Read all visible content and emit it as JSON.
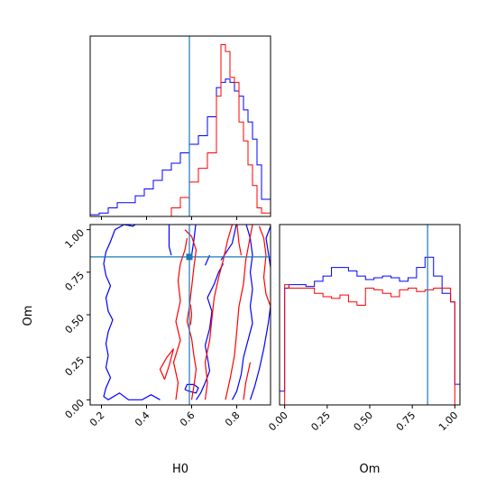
{
  "chart_data": {
    "type": "corner",
    "parameters": [
      "H0",
      "Om"
    ],
    "truth": {
      "H0": 0.59,
      "Om": 0.84
    },
    "colors": {
      "series_a": "#0000ff",
      "series_b": "#ff0000",
      "truth": "#1f77b4"
    },
    "H0_axis": {
      "xlim": [
        0.15,
        0.95
      ],
      "ticks": [
        "0.2",
        "0.4",
        "0.6",
        "0.8"
      ],
      "tick_values": [
        0.2,
        0.4,
        0.6,
        0.8
      ]
    },
    "Om_axis": {
      "lim": [
        -0.03,
        1.03
      ],
      "ticks": [
        "0.00",
        "0.25",
        "0.50",
        "0.75",
        "1.00"
      ],
      "tick_values": [
        0.0,
        0.25,
        0.5,
        0.75,
        1.0
      ]
    },
    "hist_H0": {
      "edges": [
        0.15,
        0.19,
        0.23,
        0.27,
        0.31,
        0.35,
        0.39,
        0.43,
        0.47,
        0.51,
        0.55,
        0.59,
        0.63,
        0.67,
        0.71,
        0.73,
        0.75,
        0.77,
        0.79,
        0.81,
        0.83,
        0.85,
        0.87,
        0.89,
        0.91,
        0.95
      ],
      "series": [
        {
          "values": [
            0.01,
            0.02,
            0.05,
            0.08,
            0.08,
            0.12,
            0.16,
            0.21,
            0.27,
            0.31,
            0.37,
            0.42,
            0.47,
            0.58,
            0.75,
            0.78,
            0.8,
            0.78,
            0.73,
            0.7,
            0.62,
            0.55,
            0.45,
            0.3,
            0.1
          ]
        },
        {
          "values": [
            0,
            0,
            0,
            0,
            0,
            0,
            0,
            0,
            0,
            0.05,
            0.11,
            0.2,
            0.28,
            0.37,
            0.7,
            1.0,
            0.96,
            0.81,
            0.78,
            0.55,
            0.44,
            0.3,
            0.18,
            0.05,
            0.02
          ]
        }
      ]
    },
    "hist_Om": {
      "edges": [
        -0.03,
        0.0,
        0.025,
        0.075,
        0.125,
        0.175,
        0.225,
        0.275,
        0.325,
        0.375,
        0.425,
        0.475,
        0.525,
        0.575,
        0.625,
        0.675,
        0.725,
        0.775,
        0.825,
        0.875,
        0.925,
        0.975,
        1.0,
        1.03
      ],
      "series": [
        {
          "values": [
            0.08,
            0.68,
            0.7,
            0.7,
            0.69,
            0.72,
            0.75,
            0.8,
            0.8,
            0.78,
            0.75,
            0.73,
            0.74,
            0.75,
            0.74,
            0.72,
            0.74,
            0.8,
            0.86,
            0.75,
            0.65,
            0.6,
            0.12
          ]
        },
        {
          "values": [
            0.0,
            0.7,
            0.68,
            0.68,
            0.68,
            0.65,
            0.63,
            0.62,
            0.64,
            0.6,
            0.58,
            0.68,
            0.67,
            0.65,
            0.63,
            0.67,
            0.68,
            0.66,
            0.67,
            0.68,
            0.68,
            0.6,
            0.0
          ]
        }
      ]
    },
    "contours": [
      {
        "series": 0,
        "points": [
          [
            0.37,
            1.05
          ],
          [
            0.34,
            1.02
          ],
          [
            0.3,
            1.03
          ],
          [
            0.26,
            1.0
          ],
          [
            0.24,
            0.93
          ],
          [
            0.22,
            0.87
          ],
          [
            0.21,
            0.8
          ],
          [
            0.22,
            0.73
          ],
          [
            0.24,
            0.67
          ],
          [
            0.22,
            0.6
          ],
          [
            0.23,
            0.52
          ],
          [
            0.25,
            0.47
          ],
          [
            0.23,
            0.4
          ],
          [
            0.22,
            0.33
          ],
          [
            0.23,
            0.26
          ],
          [
            0.22,
            0.19
          ],
          [
            0.24,
            0.13
          ],
          [
            0.22,
            0.07
          ],
          [
            0.21,
            0.02
          ],
          [
            0.23,
            0.0
          ],
          [
            0.28,
            0.04
          ],
          [
            0.32,
            0.0
          ],
          [
            0.38,
            0.0
          ],
          [
            0.42,
            0.03
          ],
          [
            0.46,
            0.0
          ]
        ]
      },
      {
        "series": 0,
        "points": [
          [
            0.62,
            1.05
          ],
          [
            0.61,
            0.94
          ],
          [
            0.6,
            0.85
          ]
        ]
      },
      {
        "series": 0,
        "points": [
          [
            0.5,
            1.05
          ],
          [
            0.5,
            0.9
          ],
          [
            0.51,
            0.85
          ]
        ]
      },
      {
        "series": 0,
        "points": [
          [
            0.68,
            0.85
          ],
          [
            0.67,
            0.82
          ],
          [
            0.66,
            0.79
          ]
        ]
      },
      {
        "series": 0,
        "points": [
          [
            0.57,
            0.06
          ],
          [
            0.59,
            0.05
          ],
          [
            0.62,
            0.04
          ],
          [
            0.63,
            0.07
          ],
          [
            0.61,
            0.09
          ],
          [
            0.58,
            0.09
          ],
          [
            0.57,
            0.06
          ]
        ]
      },
      {
        "series": 0,
        "points": [
          [
            0.62,
            0.0
          ],
          [
            0.64,
            0.04
          ],
          [
            0.66,
            0.1
          ],
          [
            0.68,
            0.17
          ],
          [
            0.67,
            0.25
          ],
          [
            0.66,
            0.32
          ],
          [
            0.68,
            0.42
          ],
          [
            0.69,
            0.52
          ],
          [
            0.67,
            0.6
          ],
          [
            0.7,
            0.68
          ],
          [
            0.72,
            0.75
          ],
          [
            0.74,
            0.8
          ]
        ]
      },
      {
        "series": 0,
        "points": [
          [
            0.73,
            0.82
          ],
          [
            0.78,
            0.92
          ],
          [
            0.8,
            1.04
          ],
          [
            0.84,
            1.04
          ],
          [
            0.86,
            0.95
          ],
          [
            0.87,
            0.85
          ],
          [
            0.86,
            0.75
          ],
          [
            0.87,
            0.65
          ],
          [
            0.86,
            0.55
          ],
          [
            0.87,
            0.45
          ],
          [
            0.85,
            0.35
          ],
          [
            0.83,
            0.25
          ],
          [
            0.82,
            0.15
          ],
          [
            0.8,
            0.05
          ],
          [
            0.78,
            0.0
          ]
        ]
      },
      {
        "series": 0,
        "points": [
          [
            0.86,
            0.0
          ],
          [
            0.88,
            0.08
          ],
          [
            0.9,
            0.18
          ],
          [
            0.92,
            0.3
          ],
          [
            0.94,
            0.45
          ],
          [
            0.95,
            0.55
          ]
        ]
      },
      {
        "series": 0,
        "points": [
          [
            0.95,
            0.78
          ],
          [
            0.93,
            0.95
          ],
          [
            0.95,
            1.02
          ]
        ]
      },
      {
        "series": 1,
        "points": [
          [
            0.53,
            0.0
          ],
          [
            0.54,
            0.1
          ],
          [
            0.52,
            0.22
          ],
          [
            0.55,
            0.35
          ],
          [
            0.53,
            0.46
          ],
          [
            0.55,
            0.58
          ],
          [
            0.54,
            0.7
          ],
          [
            0.55,
            0.8
          ],
          [
            0.57,
            0.88
          ],
          [
            0.58,
            0.95
          ]
        ]
      },
      {
        "series": 1,
        "points": [
          [
            0.57,
            1.0
          ],
          [
            0.6,
            0.96
          ],
          [
            0.62,
            0.88
          ],
          [
            0.61,
            0.78
          ],
          [
            0.6,
            0.66
          ],
          [
            0.59,
            0.55
          ],
          [
            0.58,
            0.46
          ],
          [
            0.6,
            0.36
          ],
          [
            0.61,
            0.26
          ],
          [
            0.62,
            0.18
          ],
          [
            0.61,
            0.08
          ],
          [
            0.6,
            0.0
          ]
        ]
      },
      {
        "series": 1,
        "points": [
          [
            0.48,
            0.12
          ],
          [
            0.46,
            0.18
          ],
          [
            0.49,
            0.25
          ],
          [
            0.52,
            0.3
          ],
          [
            0.5,
            0.2
          ],
          [
            0.48,
            0.12
          ]
        ]
      },
      {
        "series": 1,
        "points": [
          [
            0.66,
            0.0
          ],
          [
            0.67,
            0.1
          ],
          [
            0.66,
            0.22
          ],
          [
            0.68,
            0.35
          ],
          [
            0.69,
            0.48
          ],
          [
            0.7,
            0.6
          ],
          [
            0.72,
            0.72
          ],
          [
            0.74,
            0.82
          ],
          [
            0.76,
            0.94
          ],
          [
            0.78,
            1.03
          ]
        ]
      },
      {
        "series": 1,
        "points": [
          [
            0.75,
            0.0
          ],
          [
            0.77,
            0.12
          ],
          [
            0.79,
            0.26
          ],
          [
            0.8,
            0.4
          ],
          [
            0.81,
            0.55
          ],
          [
            0.83,
            0.68
          ],
          [
            0.84,
            0.82
          ],
          [
            0.86,
            0.96
          ],
          [
            0.87,
            1.03
          ]
        ]
      },
      {
        "series": 1,
        "points": [
          [
            0.8,
            1.05
          ],
          [
            0.81,
            0.92
          ],
          [
            0.82,
            0.85
          ]
        ]
      },
      {
        "series": 1,
        "points": [
          [
            0.9,
            1.02
          ],
          [
            0.92,
            0.95
          ],
          [
            0.93,
            0.85
          ],
          [
            0.92,
            0.72
          ],
          [
            0.93,
            0.62
          ],
          [
            0.95,
            0.55
          ]
        ]
      },
      {
        "series": 1,
        "points": [
          [
            0.83,
            0.0
          ],
          [
            0.84,
            0.1
          ],
          [
            0.86,
            0.22
          ]
        ]
      },
      {
        "series": 1,
        "points": [
          [
            0.595,
            0.56
          ],
          [
            0.6,
            0.5
          ],
          [
            0.595,
            0.44
          ]
        ]
      }
    ]
  }
}
